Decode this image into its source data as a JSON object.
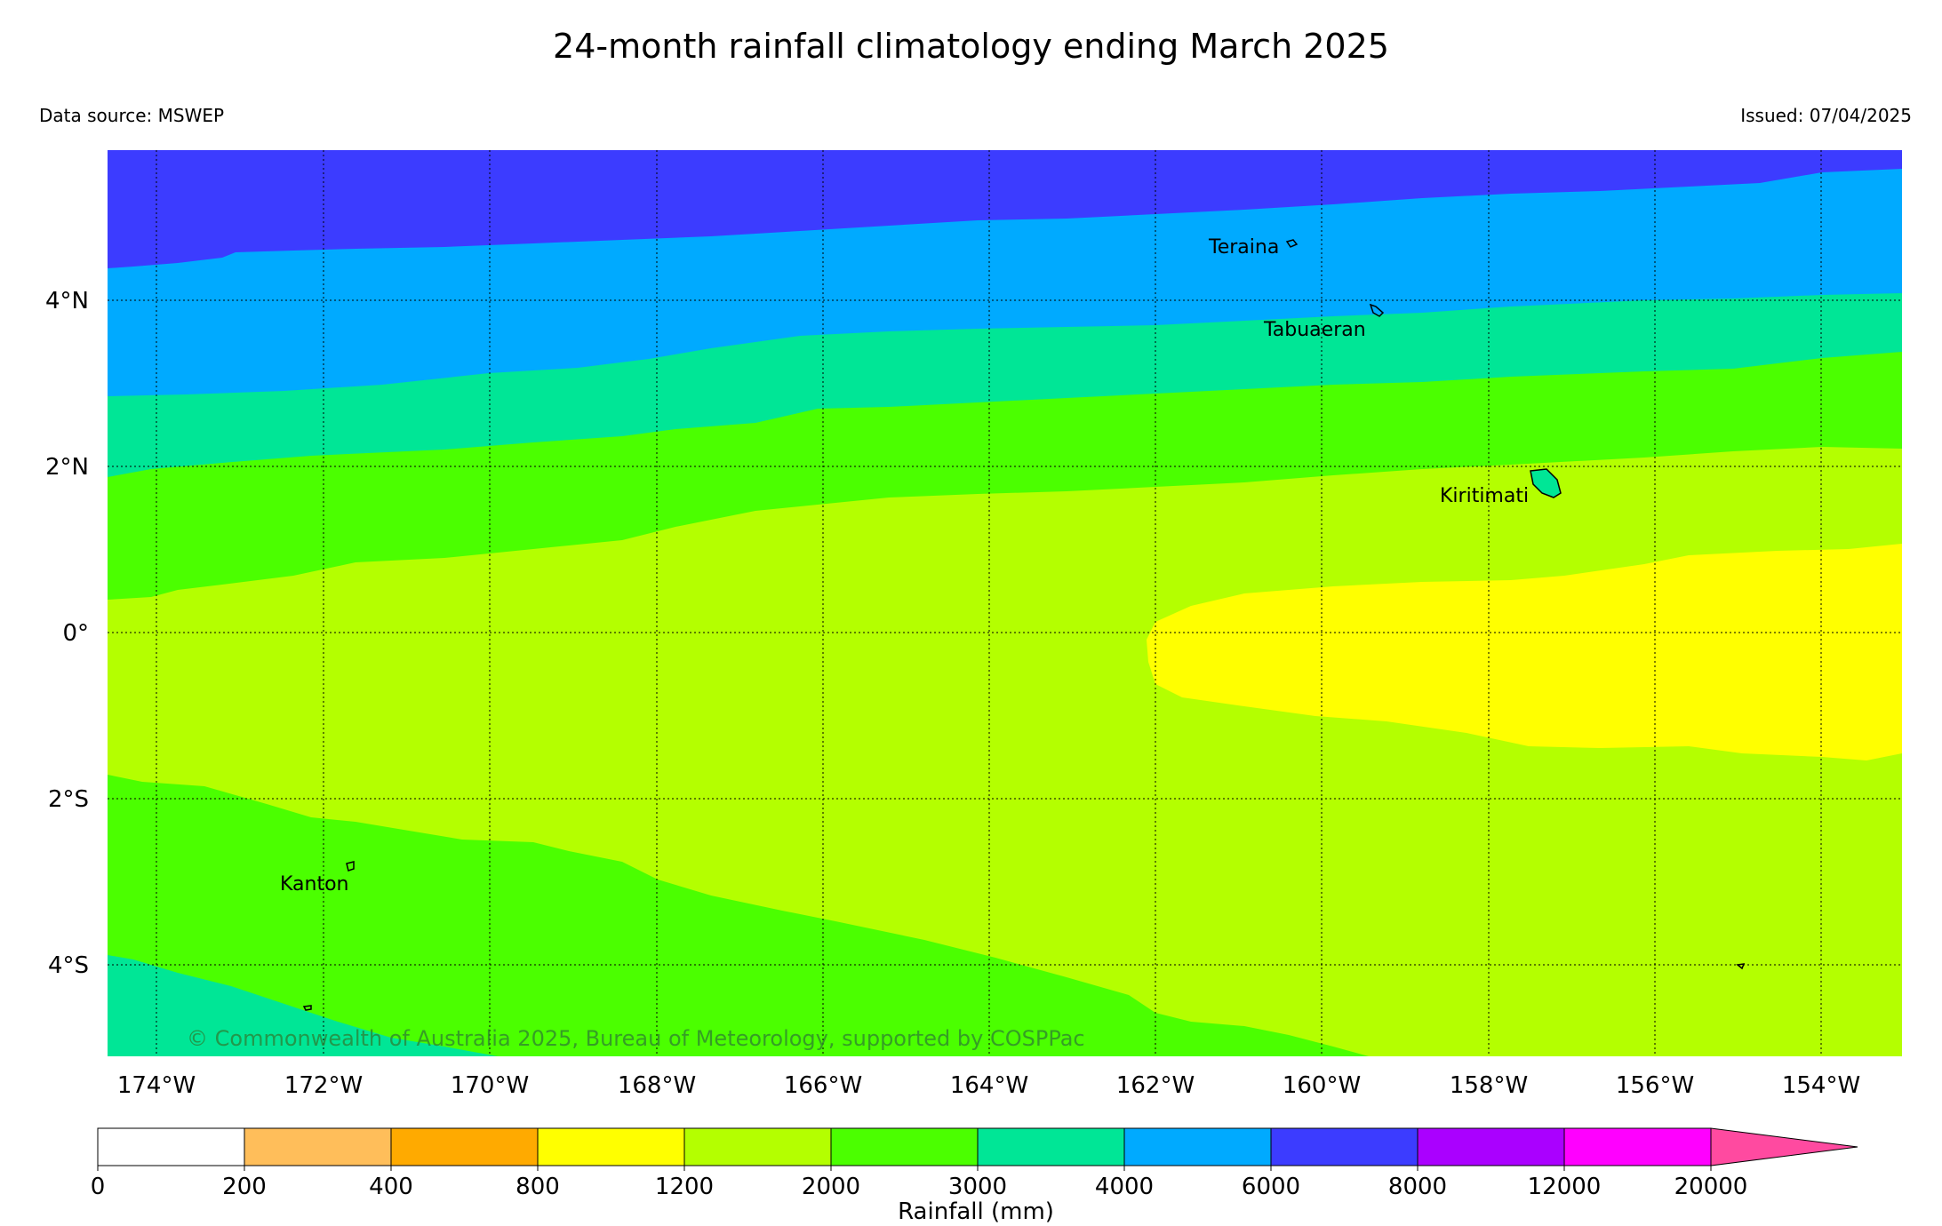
{
  "header": {
    "title": "24-month rainfall climatology ending March 2025",
    "data_source": "Data source: MSWEP",
    "issued": "Issued: 07/04/2025"
  },
  "map": {
    "lon_ticks": [
      "174°W",
      "172°W",
      "170°W",
      "168°W",
      "166°W",
      "164°W",
      "162°W",
      "160°W",
      "158°W",
      "156°W",
      "154°W"
    ],
    "lat_ticks": [
      "4°N",
      "2°N",
      "0°",
      "2°S",
      "4°S"
    ],
    "places": {
      "teraina": "Teraina",
      "tabuaeran": "Tabuaeran",
      "kiritimati": "Kiritimati",
      "kanton": "Kanton"
    },
    "copyright": "© Commonwealth of Australia 2025, Bureau of Meteorology, supported by COSPPac"
  },
  "legend": {
    "label": "Rainfall (mm)",
    "ticks": [
      "0",
      "200",
      "400",
      "800",
      "1200",
      "2000",
      "3000",
      "4000",
      "6000",
      "8000",
      "12000",
      "20000"
    ],
    "colors": [
      "#ffffff",
      "#ffbe5a",
      "#ffaa00",
      "#ffff00",
      "#b4ff00",
      "#4bff00",
      "#00e696",
      "#00aaff",
      "#3c3cff",
      "#aa00ff",
      "#ff00ff",
      "#ff4aa0"
    ]
  }
}
